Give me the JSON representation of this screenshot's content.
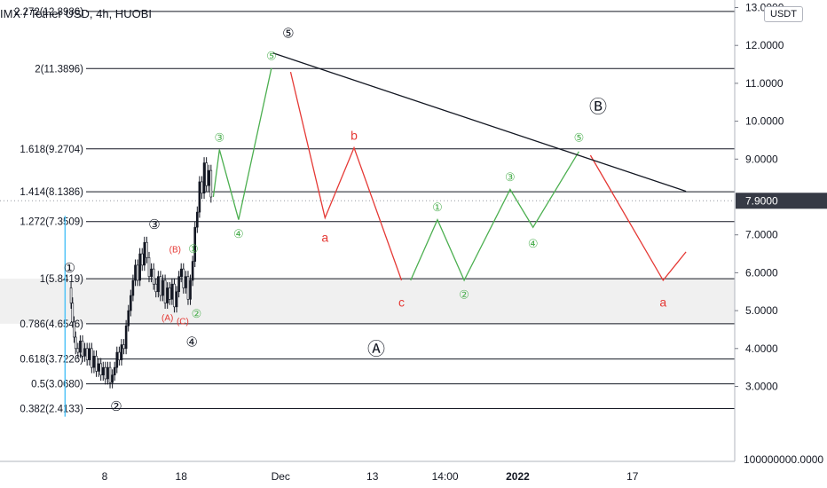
{
  "header": {
    "title": "IMX / Tether USD, 4h, HUOBI"
  },
  "axis": {
    "currency_badge": "USDT",
    "y_ticks": [
      {
        "value": 13,
        "label": "13.0000"
      },
      {
        "value": 12,
        "label": "12.0000"
      },
      {
        "value": 11,
        "label": "11.0000"
      },
      {
        "value": 10,
        "label": "10.0000"
      },
      {
        "value": 9,
        "label": "9.0000"
      },
      {
        "value": 7,
        "label": "7.0000"
      },
      {
        "value": 6,
        "label": "6.0000"
      },
      {
        "value": 5,
        "label": "5.0000"
      },
      {
        "value": 4,
        "label": "4.0000"
      },
      {
        "value": 3,
        "label": "3.0000"
      }
    ],
    "bottom_label": "100000000.0000",
    "last_price": {
      "value": 7.9,
      "label": "7.9000"
    }
  },
  "colors": {
    "green": "#4caf50",
    "red": "#e53935",
    "black": "#131722",
    "candle_up": "#26a69a",
    "zone": "#f0f0f0"
  },
  "chart_data": {
    "type": "line",
    "symbol": "IMX / Tether USD",
    "timeframe": "4h",
    "exchange": "HUOBI",
    "x_ticks": [
      {
        "t": 8,
        "label": "8",
        "bold": false
      },
      {
        "t": 18,
        "label": "18",
        "bold": false
      },
      {
        "t": 31,
        "label": "Dec",
        "bold": false
      },
      {
        "t": 43,
        "label": "13",
        "bold": false
      },
      {
        "t": 52.5,
        "label": "14:00",
        "bold": false
      },
      {
        "t": 62,
        "label": "2022",
        "bold": true
      },
      {
        "t": 77,
        "label": "17",
        "bold": false
      }
    ],
    "ylim": [
      2.1,
      13.1
    ],
    "fib_levels": [
      {
        "ratio": "2.272",
        "price": 12.8986,
        "label": "2.272(12.8986)"
      },
      {
        "ratio": "2",
        "price": 11.3896,
        "label": "2(11.3896)"
      },
      {
        "ratio": "1.618",
        "price": 9.2704,
        "label": "1.618(9.2704)"
      },
      {
        "ratio": "1.414",
        "price": 8.1386,
        "label": "1.414(8.1386)"
      },
      {
        "ratio": "1.272",
        "price": 7.3509,
        "label": "1.272(7.3509)"
      },
      {
        "ratio": "1",
        "price": 5.8419,
        "label": "1(5.8419)"
      },
      {
        "ratio": "0.786",
        "price": 4.6546,
        "label": "0.786(4.6546)"
      },
      {
        "ratio": "0.618",
        "price": 3.7226,
        "label": "0.618(3.7226)"
      },
      {
        "ratio": "0.5",
        "price": 3.068,
        "label": "0.5(3.0680)"
      },
      {
        "ratio": "0.382",
        "price": 2.4133,
        "label": "0.382(2.4133)"
      }
    ],
    "highlight_zone": {
      "from": 4.6546,
      "to": 5.8419
    },
    "price_series": [
      [
        3.4,
        5.6
      ],
      [
        3.6,
        5.2
      ],
      [
        3.8,
        4.7
      ],
      [
        4,
        4.3
      ],
      [
        4.2,
        4.0
      ],
      [
        4.5,
        3.9
      ],
      [
        4.8,
        4.2
      ],
      [
        5.1,
        3.8
      ],
      [
        5.4,
        4.0
      ],
      [
        5.7,
        3.7
      ],
      [
        6,
        4.0
      ],
      [
        6.3,
        3.5
      ],
      [
        6.6,
        3.8
      ],
      [
        6.9,
        3.4
      ],
      [
        7.2,
        3.6
      ],
      [
        7.5,
        3.3
      ],
      [
        7.8,
        3.5
      ],
      [
        8.1,
        3.2
      ],
      [
        8.4,
        3.5
      ],
      [
        8.7,
        3.1
      ],
      [
        9,
        3.3
      ],
      [
        9.3,
        3.5
      ],
      [
        9.6,
        3.9
      ],
      [
        9.9,
        3.7
      ],
      [
        10.2,
        4.1
      ],
      [
        10.5,
        4.0
      ],
      [
        10.8,
        4.6
      ],
      [
        11.1,
        5.0
      ],
      [
        11.4,
        5.4
      ],
      [
        11.7,
        5.8
      ],
      [
        12,
        6.2
      ],
      [
        12.3,
        5.8
      ],
      [
        12.6,
        6.5
      ],
      [
        12.9,
        6.2
      ],
      [
        13.2,
        6.8
      ],
      [
        13.5,
        6.4
      ],
      [
        13.8,
        5.9
      ],
      [
        14.1,
        6.1
      ],
      [
        14.4,
        5.7
      ],
      [
        14.7,
        5.5
      ],
      [
        15,
        5.9
      ],
      [
        15.3,
        5.4
      ],
      [
        15.6,
        5.8
      ],
      [
        15.9,
        5.2
      ],
      [
        16.2,
        5.6
      ],
      [
        16.5,
        5.3
      ],
      [
        16.8,
        5.7
      ],
      [
        17.1,
        5.1
      ],
      [
        17.4,
        5.5
      ],
      [
        17.7,
        5.9
      ],
      [
        18,
        6.1
      ],
      [
        18.3,
        5.6
      ],
      [
        18.6,
        5.9
      ],
      [
        18.9,
        5.3
      ],
      [
        19.2,
        5.8
      ],
      [
        19.5,
        6.3
      ],
      [
        19.8,
        7.2
      ],
      [
        20.1,
        7.6
      ],
      [
        20.4,
        8.4
      ],
      [
        20.7,
        8.1
      ],
      [
        21,
        8.9
      ],
      [
        21.3,
        8.3
      ],
      [
        21.6,
        8.7
      ],
      [
        21.9,
        8.0
      ]
    ],
    "last_price": 7.9,
    "waves": [
      {
        "name": "green-impulse",
        "color": "green",
        "points": [
          [
            22.2,
            8.0
          ],
          [
            23,
            9.25
          ],
          [
            25.5,
            7.4
          ],
          [
            29.8,
            11.4
          ]
        ]
      },
      {
        "name": "red-correction",
        "color": "red",
        "points": [
          [
            32.3,
            11.3
          ],
          [
            36.8,
            7.45
          ],
          [
            40.6,
            9.3
          ],
          [
            46.8,
            5.8
          ]
        ]
      },
      {
        "name": "green-impulse-2",
        "color": "green",
        "points": [
          [
            48,
            5.8
          ],
          [
            51.5,
            7.4
          ],
          [
            55,
            5.8
          ],
          [
            61,
            8.2
          ],
          [
            64,
            7.2
          ],
          [
            70,
            9.2
          ]
        ]
      },
      {
        "name": "red-correction-2",
        "color": "red",
        "points": [
          [
            71.5,
            9.1
          ],
          [
            81,
            5.8
          ],
          [
            84,
            6.55
          ]
        ]
      }
    ],
    "trendline": {
      "from": [
        30,
        11.8
      ],
      "to": [
        84,
        8.15
      ],
      "color": "black"
    },
    "wave_labels": [
      {
        "text": "⑤",
        "t": 32,
        "price": 12.3,
        "color": "black",
        "size": 15
      },
      {
        "text": "⑤",
        "t": 29.8,
        "price": 11.7,
        "color": "green",
        "size": 13
      },
      {
        "text": "③",
        "t": 23,
        "price": 9.55,
        "color": "green",
        "size": 13
      },
      {
        "text": "③",
        "t": 14.5,
        "price": 7.25,
        "color": "black",
        "size": 15
      },
      {
        "text": "④",
        "t": 25.5,
        "price": 7.0,
        "color": "green",
        "size": 13
      },
      {
        "text": "b",
        "t": 40.6,
        "price": 9.6,
        "color": "red",
        "size": 14
      },
      {
        "text": "a",
        "t": 36.8,
        "price": 6.9,
        "color": "red",
        "size": 14
      },
      {
        "text": "c",
        "t": 46.8,
        "price": 5.2,
        "color": "red",
        "size": 14
      },
      {
        "text": "①",
        "t": 51.5,
        "price": 7.7,
        "color": "green",
        "size": 13
      },
      {
        "text": "②",
        "t": 55,
        "price": 5.4,
        "color": "green",
        "size": 13
      },
      {
        "text": "③",
        "t": 61,
        "price": 8.5,
        "color": "green",
        "size": 13
      },
      {
        "text": "④",
        "t": 64,
        "price": 6.75,
        "color": "green",
        "size": 13
      },
      {
        "text": "⑤",
        "t": 70,
        "price": 9.55,
        "color": "green",
        "size": 13
      },
      {
        "text": "Ⓑ",
        "t": 72.5,
        "price": 10.35,
        "color": "black",
        "size": 20
      },
      {
        "text": "a",
        "t": 81,
        "price": 5.2,
        "color": "red",
        "size": 14
      },
      {
        "text": "Ⓐ",
        "t": 43.5,
        "price": 3.95,
        "color": "black",
        "size": 20
      },
      {
        "text": "①",
        "t": 3.4,
        "price": 6.1,
        "color": "black",
        "size": 15
      },
      {
        "text": "(B)",
        "t": 17.2,
        "price": 6.6,
        "color": "red",
        "size": 10
      },
      {
        "text": "①",
        "t": 19.6,
        "price": 6.6,
        "color": "green",
        "size": 13
      },
      {
        "text": "(A)",
        "t": 16.2,
        "price": 4.8,
        "color": "red",
        "size": 10
      },
      {
        "text": "(C)",
        "t": 18.2,
        "price": 4.7,
        "color": "red",
        "size": 10
      },
      {
        "text": "②",
        "t": 20,
        "price": 4.9,
        "color": "green",
        "size": 13
      },
      {
        "text": "④",
        "t": 19.4,
        "price": 4.15,
        "color": "black",
        "size": 15
      },
      {
        "text": "②",
        "t": 9.5,
        "price": 2.45,
        "color": "black",
        "size": 15
      }
    ]
  }
}
